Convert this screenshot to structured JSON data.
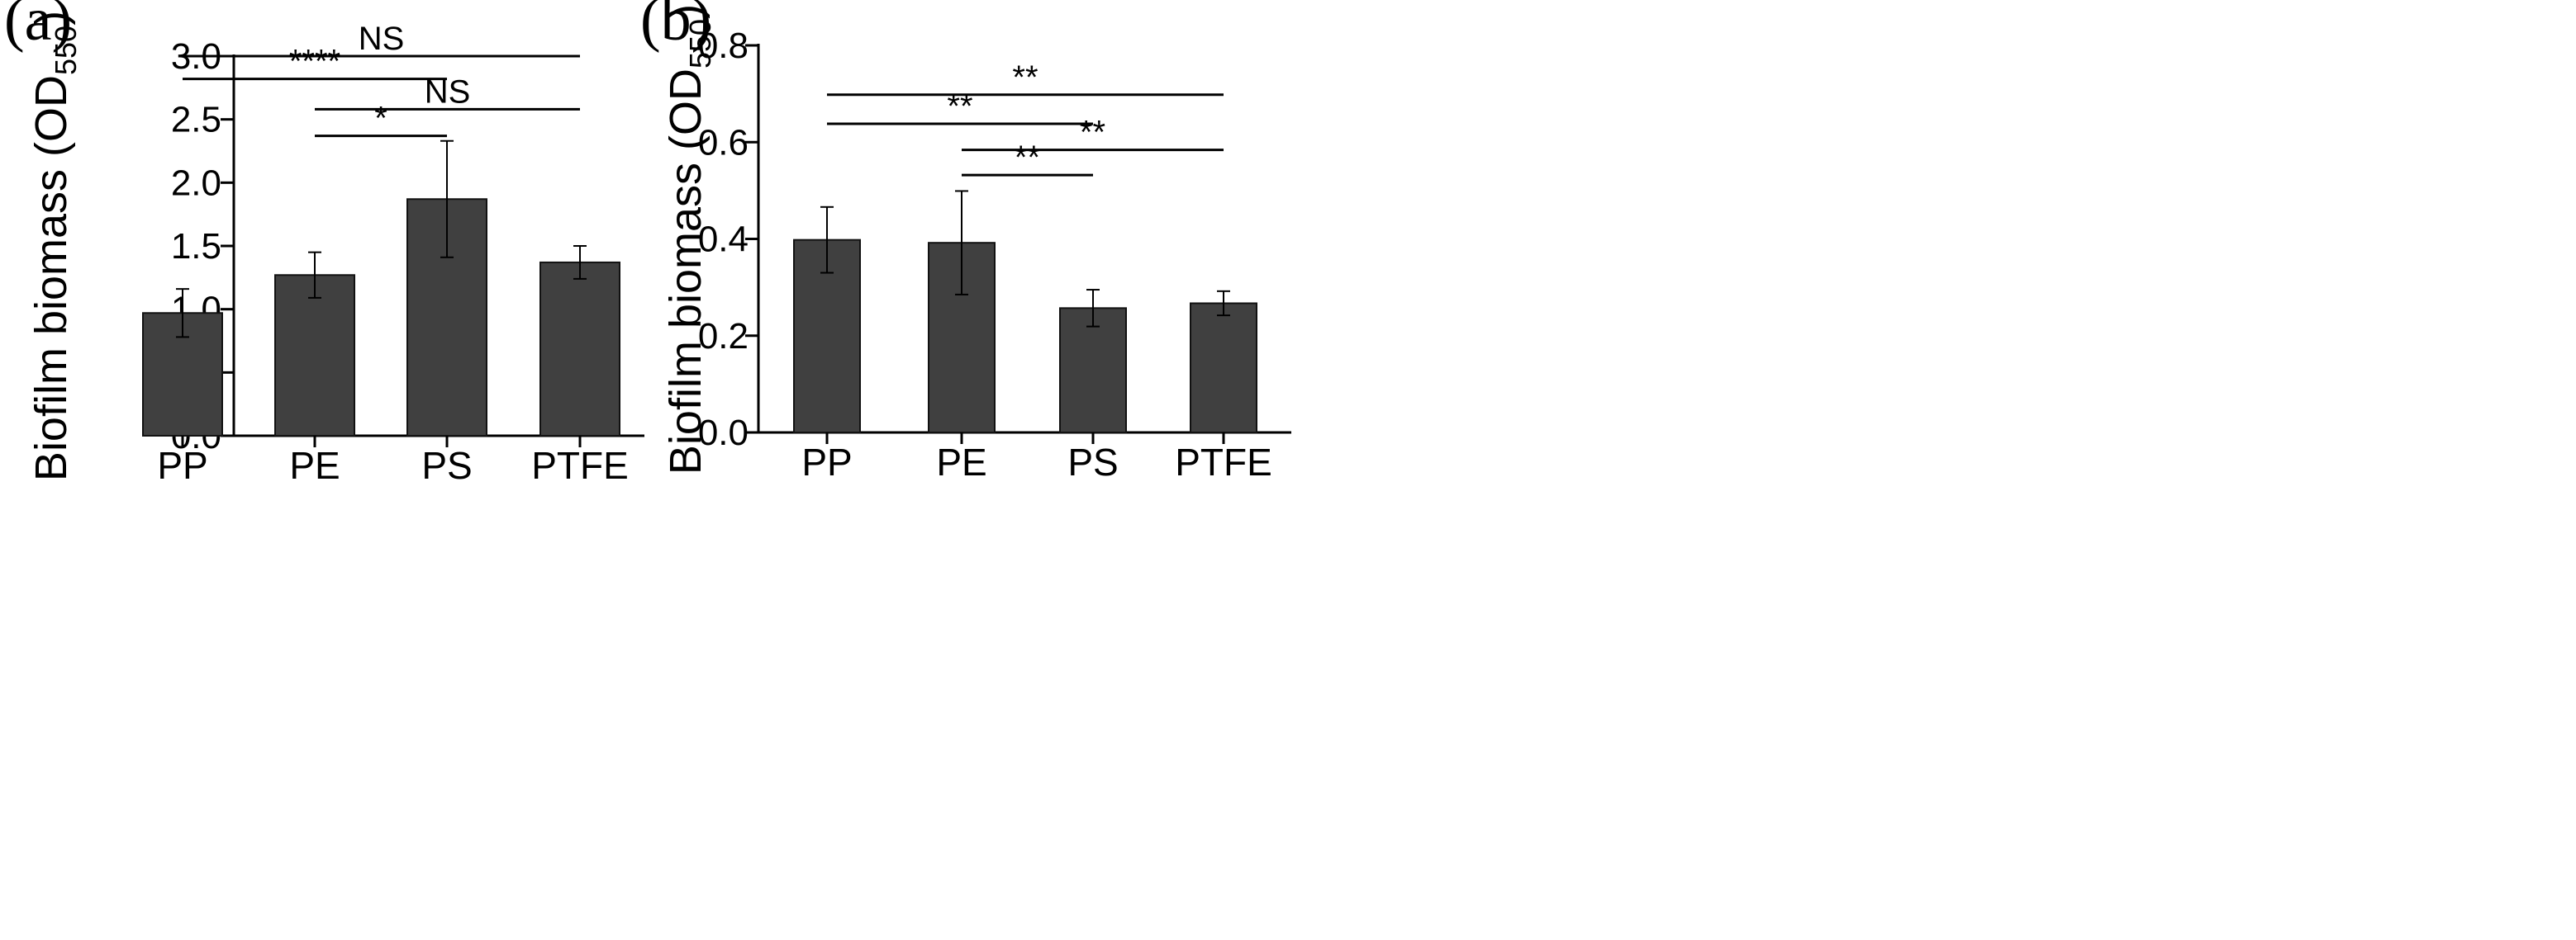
{
  "chart_data": [
    {
      "panel": "(a)",
      "type": "bar",
      "categories": [
        "PP",
        "PE",
        "PS",
        "PTFE"
      ],
      "values": [
        0.97,
        1.27,
        1.87,
        1.37
      ],
      "errors": [
        0.19,
        0.18,
        0.46,
        0.13
      ],
      "ylabel": "Biofilm biomass (OD",
      "ylabel_sub": "550",
      "ylabel_close": ")",
      "ylim": [
        0,
        3.0
      ],
      "yticks": [
        "0.0",
        "0.5",
        "1.0",
        "1.5",
        "2.0",
        "2.5",
        "3.0"
      ],
      "ytick_values": [
        0,
        0.5,
        1.0,
        1.5,
        2.0,
        2.5,
        3.0
      ],
      "bar_color": "#404040",
      "comparisons": [
        {
          "from": "PP",
          "to": "PTFE",
          "label": "NS",
          "y": 3.0
        },
        {
          "from": "PP",
          "to": "PS",
          "label": "****",
          "y": 2.82
        },
        {
          "from": "PE",
          "to": "PTFE",
          "label": "NS",
          "y": 2.58
        },
        {
          "from": "PE",
          "to": "PS",
          "label": "*",
          "y": 2.37
        }
      ]
    },
    {
      "panel": "(b)",
      "type": "bar",
      "categories": [
        "PP",
        "PE",
        "PS",
        "PTFE"
      ],
      "values": [
        0.398,
        0.392,
        0.257,
        0.267
      ],
      "errors": [
        0.068,
        0.107,
        0.038,
        0.025
      ],
      "ylabel": "Biofilm biomass (OD",
      "ylabel_sub": "550",
      "ylabel_close": ")",
      "ylim": [
        0,
        0.8
      ],
      "yticks": [
        "0.0",
        "0.2",
        "0.4",
        "0.6",
        "0.8"
      ],
      "ytick_values": [
        0,
        0.2,
        0.4,
        0.6,
        0.8
      ],
      "bar_color": "#404040",
      "comparisons": [
        {
          "from": "PP",
          "to": "PTFE",
          "label": "**",
          "y": 0.698
        },
        {
          "from": "PP",
          "to": "PS",
          "label": "**",
          "y": 0.638
        },
        {
          "from": "PE",
          "to": "PTFE",
          "label": "**",
          "y": 0.584
        },
        {
          "from": "PE",
          "to": "PS",
          "label": "**",
          "y": 0.532
        }
      ]
    }
  ]
}
